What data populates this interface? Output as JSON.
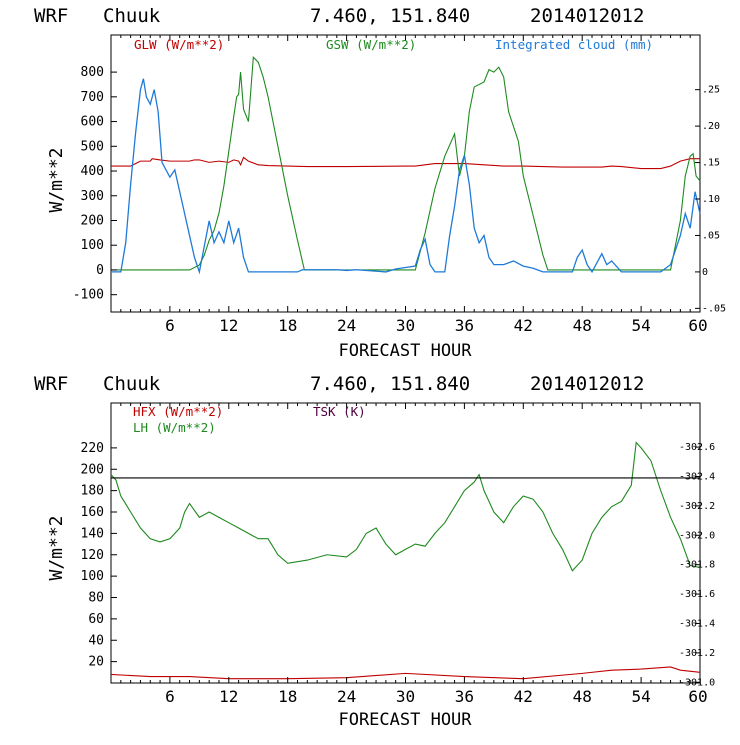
{
  "colors": {
    "glw": "#c00000",
    "gsw": "#1e8a1e",
    "cloud": "#1e7ad8",
    "hfx": "#c00000",
    "lh": "#1e8a1e",
    "tsk": "#500040",
    "frame": "#000000"
  },
  "chart_data": [
    {
      "type": "line",
      "header": {
        "model": "WRF",
        "station": "Chuuk",
        "coords": "7.460, 151.840",
        "init": "2014012012"
      },
      "xlabel": "FORECAST HOUR",
      "ylabel": "W/m**2",
      "xlim": [
        0,
        60
      ],
      "ylim": [
        -170,
        950
      ],
      "y2lim": [
        -0.055,
        0.325
      ],
      "x_ticks": [
        "6",
        "12",
        "18",
        "24",
        "30",
        "36",
        "42",
        "48",
        "54",
        "60"
      ],
      "y_ticks": [
        "-100",
        "0",
        "100",
        "200",
        "300",
        "400",
        "500",
        "600",
        "700",
        "800"
      ],
      "y2_ticks": [
        "-.05",
        "0",
        ".05",
        ".10",
        ".15",
        ".20",
        ".25"
      ],
      "legend": [
        "GLW (W/m**2)",
        "GSW (W/m**2)",
        "Integrated cloud (mm)"
      ],
      "series": [
        {
          "name": "GLW (W/m**2)",
          "axis": "left",
          "points": [
            [
              0,
              420
            ],
            [
              2,
              420
            ],
            [
              2.5,
              430
            ],
            [
              3,
              440
            ],
            [
              4,
              440
            ],
            [
              4.2,
              450
            ],
            [
              5,
              445
            ],
            [
              6,
              440
            ],
            [
              8,
              440
            ],
            [
              8.5,
              445
            ],
            [
              9,
              445
            ],
            [
              10,
              435
            ],
            [
              11,
              440
            ],
            [
              12,
              435
            ],
            [
              12.5,
              445
            ],
            [
              13,
              440
            ],
            [
              13.2,
              425
            ],
            [
              13.5,
              455
            ],
            [
              14,
              440
            ],
            [
              15,
              425
            ],
            [
              16,
              422
            ],
            [
              18,
              420
            ],
            [
              20,
              418
            ],
            [
              24,
              418
            ],
            [
              30,
              420
            ],
            [
              31,
              420
            ],
            [
              32,
              425
            ],
            [
              33,
              430
            ],
            [
              34,
              430
            ],
            [
              36,
              430
            ],
            [
              38,
              425
            ],
            [
              40,
              420
            ],
            [
              42,
              420
            ],
            [
              44,
              418
            ],
            [
              46,
              416
            ],
            [
              50,
              416
            ],
            [
              51,
              420
            ],
            [
              52,
              418
            ],
            [
              54,
              410
            ],
            [
              56,
              410
            ],
            [
              57,
              420
            ],
            [
              58,
              440
            ],
            [
              59,
              450
            ],
            [
              60,
              450
            ]
          ]
        },
        {
          "name": "GSW (W/m**2)",
          "axis": "left",
          "points": [
            [
              0,
              0
            ],
            [
              7,
              0
            ],
            [
              8,
              0
            ],
            [
              9,
              20
            ],
            [
              9.5,
              60
            ],
            [
              10,
              120
            ],
            [
              10.5,
              160
            ],
            [
              11,
              230
            ],
            [
              11.5,
              340
            ],
            [
              12,
              480
            ],
            [
              12.5,
              620
            ],
            [
              12.8,
              700
            ],
            [
              13,
              710
            ],
            [
              13.2,
              800
            ],
            [
              13.5,
              650
            ],
            [
              14,
              600
            ],
            [
              14.5,
              860
            ],
            [
              15,
              840
            ],
            [
              15.5,
              780
            ],
            [
              16,
              700
            ],
            [
              17,
              500
            ],
            [
              18,
              300
            ],
            [
              19,
              120
            ],
            [
              19.7,
              0
            ],
            [
              31,
              0
            ],
            [
              32,
              150
            ],
            [
              33,
              330
            ],
            [
              34,
              460
            ],
            [
              35,
              550
            ],
            [
              35.5,
              380
            ],
            [
              36,
              460
            ],
            [
              36.5,
              640
            ],
            [
              37,
              740
            ],
            [
              38,
              760
            ],
            [
              38.5,
              810
            ],
            [
              39,
              800
            ],
            [
              39.5,
              820
            ],
            [
              40,
              780
            ],
            [
              40.5,
              640
            ],
            [
              41,
              580
            ],
            [
              41.5,
              520
            ],
            [
              42,
              380
            ],
            [
              43,
              220
            ],
            [
              44,
              60
            ],
            [
              44.5,
              0
            ],
            [
              57,
              0
            ],
            [
              57.5,
              100
            ],
            [
              58,
              200
            ],
            [
              58.5,
              380
            ],
            [
              59,
              460
            ],
            [
              59.3,
              470
            ],
            [
              59.6,
              380
            ],
            [
              60,
              360
            ]
          ]
        },
        {
          "name": "Integrated cloud (mm)",
          "axis": "right",
          "points": [
            [
              0,
              0.0
            ],
            [
              1,
              0.0
            ],
            [
              1.5,
              0.04
            ],
            [
              2,
              0.12
            ],
            [
              2.5,
              0.19
            ],
            [
              3,
              0.25
            ],
            [
              3.3,
              0.265
            ],
            [
              3.6,
              0.24
            ],
            [
              4,
              0.23
            ],
            [
              4.4,
              0.25
            ],
            [
              4.8,
              0.22
            ],
            [
              5.2,
              0.15
            ],
            [
              6,
              0.13
            ],
            [
              6.5,
              0.14
            ],
            [
              7,
              0.11
            ],
            [
              8,
              0.05
            ],
            [
              8.5,
              0.02
            ],
            [
              9,
              0.0
            ],
            [
              9.5,
              0.035
            ],
            [
              10,
              0.07
            ],
            [
              10.5,
              0.04
            ],
            [
              11,
              0.055
            ],
            [
              11.5,
              0.04
            ],
            [
              12,
              0.07
            ],
            [
              12.5,
              0.04
            ],
            [
              13,
              0.06
            ],
            [
              13.5,
              0.02
            ],
            [
              14,
              0.0
            ],
            [
              19,
              0.0
            ],
            [
              19.5,
              0.003
            ],
            [
              23,
              0.003
            ],
            [
              24,
              0.002
            ],
            [
              25,
              0.003
            ],
            [
              28,
              0.0
            ],
            [
              29,
              0.004
            ],
            [
              30,
              0.006
            ],
            [
              31,
              0.008
            ],
            [
              31.5,
              0.03
            ],
            [
              32,
              0.045
            ],
            [
              32.5,
              0.01
            ],
            [
              33,
              0.0
            ],
            [
              34,
              0.0
            ],
            [
              34.5,
              0.05
            ],
            [
              35,
              0.09
            ],
            [
              35.5,
              0.14
            ],
            [
              36,
              0.16
            ],
            [
              36.5,
              0.12
            ],
            [
              37,
              0.06
            ],
            [
              37.5,
              0.04
            ],
            [
              38,
              0.05
            ],
            [
              38.5,
              0.02
            ],
            [
              39,
              0.01
            ],
            [
              40,
              0.01
            ],
            [
              41,
              0.015
            ],
            [
              42,
              0.008
            ],
            [
              43,
              0.005
            ],
            [
              44,
              0.0
            ],
            [
              47,
              0.0
            ],
            [
              47.5,
              0.02
            ],
            [
              48,
              0.03
            ],
            [
              48.5,
              0.01
            ],
            [
              49,
              0.0
            ],
            [
              50,
              0.025
            ],
            [
              50.5,
              0.01
            ],
            [
              51,
              0.015
            ],
            [
              52,
              0.0
            ],
            [
              56,
              0.0
            ],
            [
              57,
              0.01
            ],
            [
              57.5,
              0.03
            ],
            [
              58,
              0.05
            ],
            [
              58.5,
              0.08
            ],
            [
              59,
              0.06
            ],
            [
              59.5,
              0.11
            ],
            [
              60,
              0.08
            ]
          ]
        }
      ]
    },
    {
      "type": "line",
      "header": {
        "model": "WRF",
        "station": "Chuuk",
        "coords": "7.460, 151.840",
        "init": "2014012012"
      },
      "xlabel": "FORECAST HOUR",
      "ylabel": "W/m**2",
      "xlim": [
        0,
        60
      ],
      "ylim": [
        0,
        262
      ],
      "y2lim": [
        300.995,
        302.9
      ],
      "x_ticks": [
        "6",
        "12",
        "18",
        "24",
        "30",
        "36",
        "42",
        "48",
        "54",
        "60"
      ],
      "y_ticks": [
        "20",
        "40",
        "60",
        "80",
        "100",
        "120",
        "140",
        "160",
        "180",
        "200",
        "220"
      ],
      "y2_ticks": [
        "301.0",
        "301.2",
        "301.4",
        "301.6",
        "301.8",
        "302.0",
        "302.2",
        "302.4",
        "302.6"
      ],
      "legend": [
        "HFX (W/m**2)",
        "LH (W/m**2)",
        "TSK (K)"
      ],
      "series": [
        {
          "name": "HFX (W/m**2)",
          "axis": "left",
          "points": [
            [
              0,
              8
            ],
            [
              4,
              6
            ],
            [
              8,
              6
            ],
            [
              12,
              4
            ],
            [
              18,
              4
            ],
            [
              24,
              5
            ],
            [
              30,
              9
            ],
            [
              36,
              6
            ],
            [
              42,
              4
            ],
            [
              48,
              9
            ],
            [
              51,
              12
            ],
            [
              54,
              13
            ],
            [
              57,
              15
            ],
            [
              58,
              12
            ],
            [
              60,
              10
            ]
          ]
        },
        {
          "name": "LH (W/m**2)",
          "axis": "left",
          "points": [
            [
              0,
              195
            ],
            [
              0.5,
              190
            ],
            [
              1,
              175
            ],
            [
              2,
              160
            ],
            [
              3,
              145
            ],
            [
              4,
              135
            ],
            [
              5,
              132
            ],
            [
              6,
              135
            ],
            [
              7,
              145
            ],
            [
              7.5,
              160
            ],
            [
              8,
              168
            ],
            [
              9,
              155
            ],
            [
              10,
              160
            ],
            [
              11,
              155
            ],
            [
              12,
              150
            ],
            [
              13,
              145
            ],
            [
              14,
              140
            ],
            [
              15,
              135
            ],
            [
              16,
              135
            ],
            [
              17,
              120
            ],
            [
              18,
              112
            ],
            [
              20,
              115
            ],
            [
              22,
              120
            ],
            [
              24,
              118
            ],
            [
              25,
              125
            ],
            [
              26,
              140
            ],
            [
              27,
              145
            ],
            [
              28,
              130
            ],
            [
              29,
              120
            ],
            [
              30,
              125
            ],
            [
              31,
              130
            ],
            [
              32,
              128
            ],
            [
              33,
              140
            ],
            [
              34,
              150
            ],
            [
              35,
              165
            ],
            [
              36,
              180
            ],
            [
              37,
              188
            ],
            [
              37.5,
              195
            ],
            [
              38,
              180
            ],
            [
              39,
              160
            ],
            [
              40,
              150
            ],
            [
              41,
              165
            ],
            [
              42,
              175
            ],
            [
              43,
              172
            ],
            [
              44,
              160
            ],
            [
              45,
              140
            ],
            [
              46,
              125
            ],
            [
              47,
              105
            ],
            [
              48,
              115
            ],
            [
              49,
              140
            ],
            [
              50,
              155
            ],
            [
              51,
              165
            ],
            [
              52,
              170
            ],
            [
              53,
              185
            ],
            [
              53.5,
              225
            ],
            [
              54,
              220
            ],
            [
              55,
              208
            ],
            [
              56,
              180
            ],
            [
              57,
              155
            ],
            [
              58,
              135
            ],
            [
              59,
              110
            ],
            [
              60,
              108
            ]
          ]
        },
        {
          "name": "TSK (K)",
          "axis": "right",
          "points": [
            [
              0,
              302.39
            ],
            [
              60,
              302.39
            ]
          ]
        }
      ]
    }
  ]
}
